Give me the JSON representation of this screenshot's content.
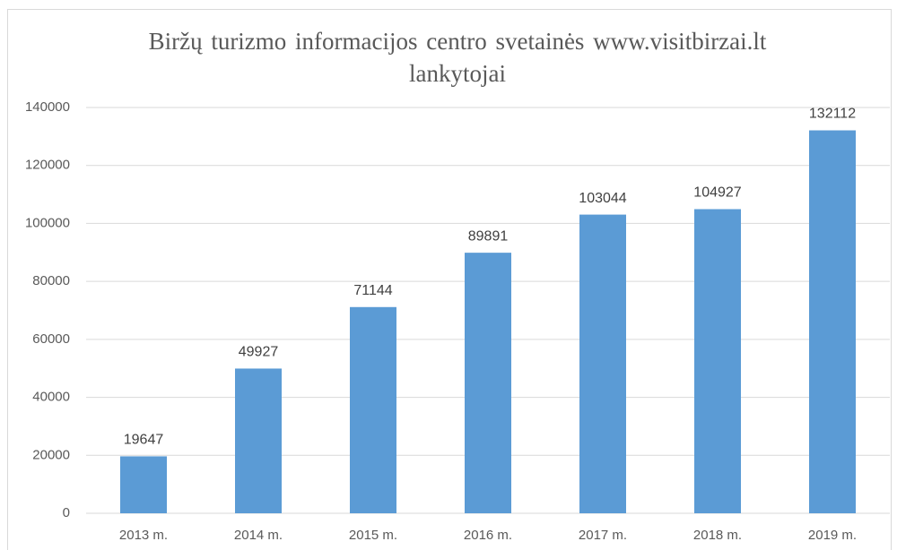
{
  "chart_data": {
    "type": "bar",
    "title": "Biržų turizmo informacijos centro svetainės www.visitbirzai.lt lankytojai",
    "categories": [
      "2013 m.",
      "2014 m.",
      "2015 m.",
      "2016 m.",
      "2017 m.",
      "2018 m.",
      "2019 m."
    ],
    "values": [
      19647,
      49927,
      71144,
      89891,
      103044,
      104927,
      132112
    ],
    "color": "#5b9bd5",
    "ylim": [
      0,
      140000
    ],
    "yticks": [
      0,
      20000,
      40000,
      60000,
      80000,
      100000,
      120000,
      140000
    ],
    "grid": true
  }
}
